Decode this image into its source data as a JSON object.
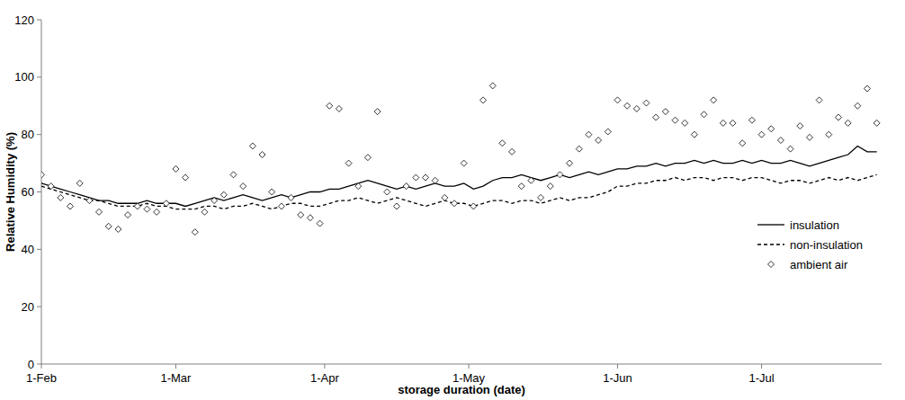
{
  "chart_data": {
    "type": "line",
    "x_label": "storage duration (date)",
    "y_label": "Relative Humidity (%)",
    "x": [
      0,
      2,
      4,
      6,
      8,
      10,
      12,
      14,
      16,
      18,
      20,
      22,
      24,
      26,
      28,
      30,
      32,
      34,
      36,
      38,
      40,
      42,
      44,
      46,
      48,
      50,
      52,
      54,
      56,
      58,
      60,
      62,
      64,
      66,
      68,
      70,
      72,
      74,
      76,
      78,
      80,
      82,
      84,
      86,
      88,
      90,
      92,
      94,
      96,
      98,
      100,
      102,
      104,
      106,
      108,
      110,
      112,
      114,
      116,
      118,
      120,
      122,
      124,
      126,
      128,
      130,
      132,
      134,
      136,
      138,
      140,
      142,
      144,
      146,
      148,
      150,
      152,
      154,
      156,
      158,
      160,
      162,
      164,
      166,
      168,
      170,
      172,
      174
    ],
    "xlim": [
      0,
      175
    ],
    "xticks": [
      {
        "value": 0,
        "label": "1-Feb"
      },
      {
        "value": 28,
        "label": "1-Mar"
      },
      {
        "value": 59,
        "label": "1-Apr"
      },
      {
        "value": 89,
        "label": "1-May"
      },
      {
        "value": 120,
        "label": "1-Jun"
      },
      {
        "value": 150,
        "label": "1-Jul"
      }
    ],
    "ylim": [
      0,
      120
    ],
    "yticks": [
      0,
      20,
      40,
      60,
      80,
      100,
      120
    ],
    "grid": false,
    "legend": "right",
    "series": [
      {
        "name": "insulation",
        "color": "#000000",
        "type": "line",
        "line_style": "solid",
        "marker": "none",
        "values": [
          63,
          62,
          61,
          60,
          59,
          58,
          57,
          57,
          56,
          56,
          56,
          57,
          56,
          56,
          56,
          55,
          56,
          57,
          58,
          57,
          58,
          59,
          58,
          57,
          58,
          59,
          58,
          59,
          60,
          60,
          61,
          61,
          62,
          63,
          64,
          63,
          62,
          61,
          62,
          61,
          62,
          63,
          62,
          62,
          63,
          61,
          62,
          64,
          65,
          65,
          66,
          65,
          64,
          65,
          66,
          65,
          66,
          67,
          66,
          67,
          68,
          68,
          69,
          69,
          70,
          69,
          70,
          70,
          71,
          70,
          71,
          70,
          70,
          71,
          70,
          71,
          70,
          70,
          71,
          70,
          69,
          70,
          71,
          72,
          73,
          76,
          74,
          74
        ]
      },
      {
        "name": "non-insulation",
        "color": "#000000",
        "type": "line",
        "line_style": "dashed",
        "marker": "none",
        "values": [
          62,
          61,
          60,
          59,
          58,
          57,
          57,
          56,
          55,
          55,
          55,
          56,
          55,
          55,
          54,
          54,
          54,
          55,
          55,
          54,
          55,
          55,
          56,
          55,
          54,
          55,
          56,
          56,
          55,
          55,
          56,
          57,
          57,
          58,
          57,
          56,
          57,
          58,
          57,
          56,
          55,
          56,
          57,
          56,
          56,
          55,
          56,
          57,
          57,
          56,
          57,
          57,
          56,
          57,
          58,
          57,
          58,
          58,
          59,
          60,
          62,
          62,
          63,
          63,
          64,
          64,
          65,
          64,
          65,
          65,
          64,
          65,
          65,
          64,
          65,
          65,
          64,
          63,
          64,
          64,
          63,
          64,
          65,
          64,
          65,
          64,
          65,
          66
        ]
      },
      {
        "name": "ambient air",
        "color": "#000000",
        "type": "scatter",
        "line_style": "none",
        "marker": "diamond",
        "values": [
          66,
          62,
          58,
          55,
          63,
          57,
          53,
          48,
          47,
          52,
          55,
          54,
          53,
          56,
          68,
          65,
          46,
          53,
          57,
          59,
          66,
          62,
          76,
          73,
          60,
          55,
          58,
          52,
          51,
          49,
          90,
          89,
          70,
          62,
          72,
          88,
          60,
          55,
          62,
          65,
          65,
          64,
          58,
          56,
          70,
          55,
          92,
          97,
          77,
          74,
          62,
          64,
          58,
          62,
          66,
          70,
          75,
          80,
          78,
          81,
          92,
          90,
          89,
          91,
          86,
          88,
          85,
          84,
          80,
          87,
          92,
          84,
          84,
          77,
          85,
          80,
          82,
          78,
          75,
          83,
          79,
          92,
          80,
          86,
          84,
          90,
          96,
          84
        ]
      }
    ]
  }
}
